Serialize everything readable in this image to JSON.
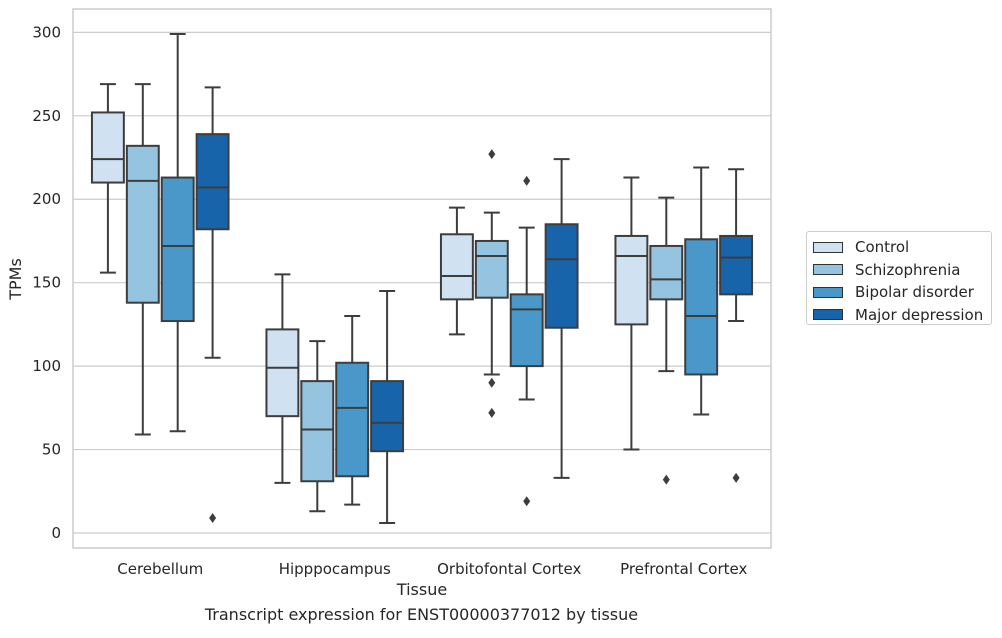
{
  "caption": "Transcript expression for ENST00000377012 by tissue",
  "chart_data": {
    "type": "box",
    "xlabel": "Tissue",
    "ylabel": "TPMs",
    "ylim": [
      -9,
      314
    ],
    "yticks": [
      0,
      50,
      100,
      150,
      200,
      250,
      300
    ],
    "grid": true,
    "legend_position": "right",
    "categories": [
      "Cerebellum",
      "Hipppocampus",
      "Orbitofontal Cortex",
      "Prefrontal Cortex"
    ],
    "series": [
      {
        "name": "Control",
        "color": "#d0e1f2",
        "boxes": [
          {
            "whisker_low": 156,
            "q1": 210,
            "median": 224,
            "q3": 252,
            "whisker_high": 269,
            "outliers": []
          },
          {
            "whisker_low": 30,
            "q1": 70,
            "median": 99,
            "q3": 122,
            "whisker_high": 155,
            "outliers": []
          },
          {
            "whisker_low": 119,
            "q1": 140,
            "median": 154,
            "q3": 179,
            "whisker_high": 195,
            "outliers": []
          },
          {
            "whisker_low": 50,
            "q1": 125,
            "median": 166,
            "q3": 178,
            "whisker_high": 213,
            "outliers": []
          }
        ]
      },
      {
        "name": "Schizophrenia",
        "color": "#94c4df",
        "boxes": [
          {
            "whisker_low": 59,
            "q1": 138,
            "median": 211,
            "q3": 232,
            "whisker_high": 269,
            "outliers": []
          },
          {
            "whisker_low": 13,
            "q1": 31,
            "median": 62,
            "q3": 91,
            "whisker_high": 115,
            "outliers": []
          },
          {
            "whisker_low": 95,
            "q1": 141,
            "median": 166,
            "q3": 175,
            "whisker_high": 192,
            "outliers": [
              227,
              90,
              72
            ]
          },
          {
            "whisker_low": 97,
            "q1": 140,
            "median": 152,
            "q3": 172,
            "whisker_high": 201,
            "outliers": [
              32
            ]
          }
        ]
      },
      {
        "name": "Bipolar disorder",
        "color": "#4a98c9",
        "boxes": [
          {
            "whisker_low": 61,
            "q1": 127,
            "median": 172,
            "q3": 213,
            "whisker_high": 299,
            "outliers": []
          },
          {
            "whisker_low": 17,
            "q1": 34,
            "median": 75,
            "q3": 102,
            "whisker_high": 130,
            "outliers": []
          },
          {
            "whisker_low": 80,
            "q1": 100,
            "median": 134,
            "q3": 143,
            "whisker_high": 183,
            "outliers": [
              211,
              19
            ]
          },
          {
            "whisker_low": 71,
            "q1": 95,
            "median": 130,
            "q3": 176,
            "whisker_high": 219,
            "outliers": []
          }
        ]
      },
      {
        "name": "Major depression",
        "color": "#1764ab",
        "boxes": [
          {
            "whisker_low": 105,
            "q1": 182,
            "median": 207,
            "q3": 239,
            "whisker_high": 267,
            "outliers": [
              9
            ]
          },
          {
            "whisker_low": 6,
            "q1": 49,
            "median": 66,
            "q3": 91,
            "whisker_high": 145,
            "outliers": []
          },
          {
            "whisker_low": 33,
            "q1": 123,
            "median": 164,
            "q3": 185,
            "whisker_high": 224,
            "outliers": []
          },
          {
            "whisker_low": 127,
            "q1": 143,
            "median": 165,
            "q3": 178,
            "whisker_high": 218,
            "outliers": [
              33
            ]
          }
        ]
      }
    ]
  }
}
